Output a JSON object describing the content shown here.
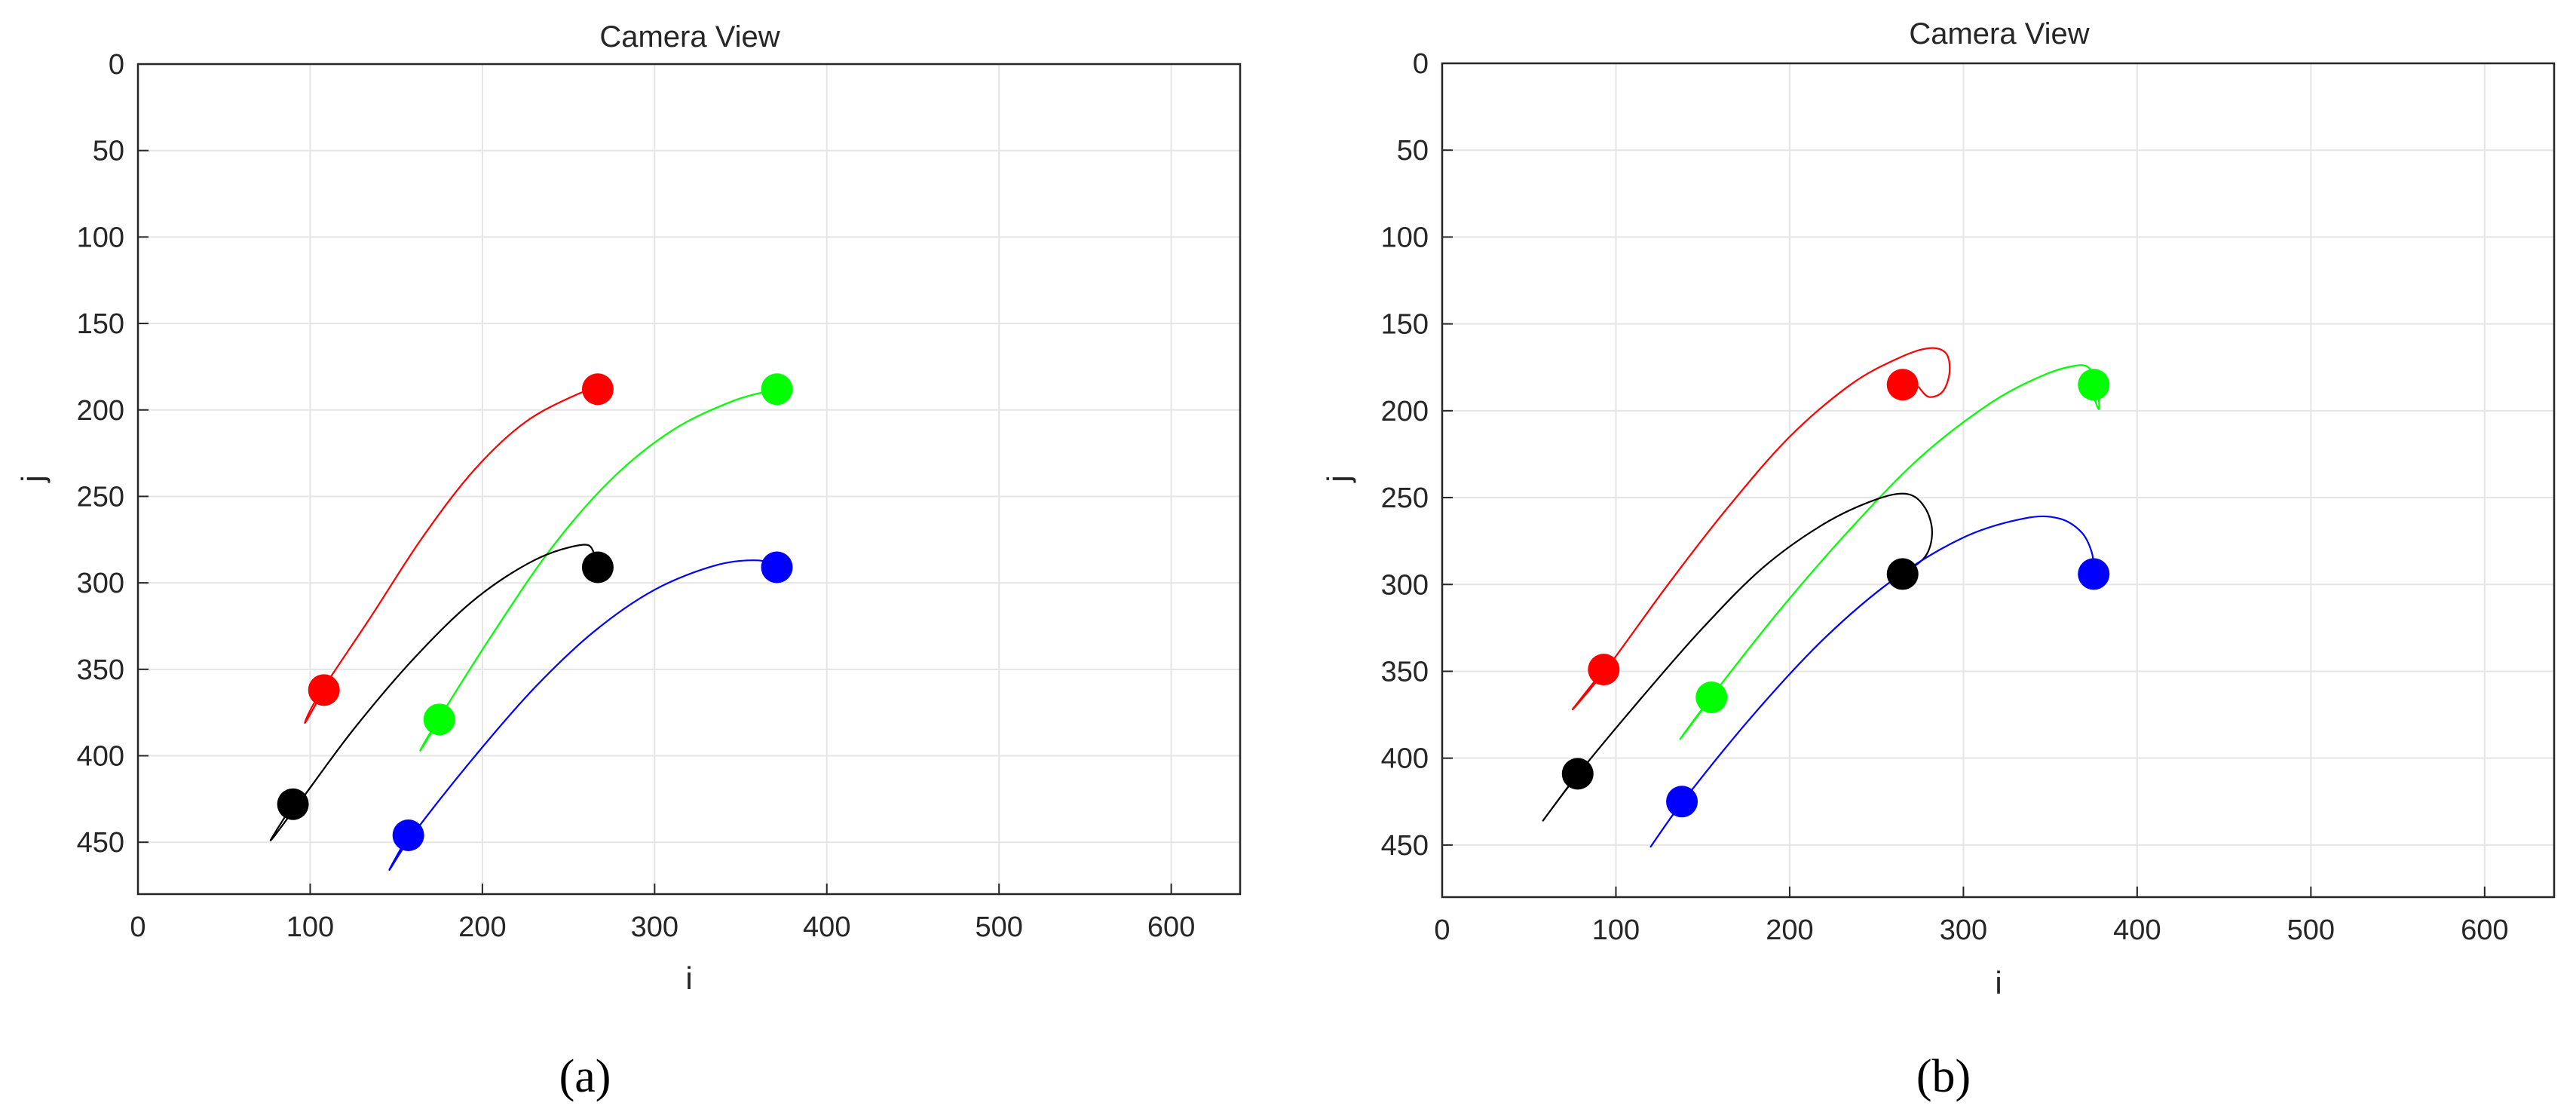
{
  "panels": [
    {
      "caption": "(a)",
      "chart_data": {
        "type": "scatter",
        "title": "Camera View",
        "xlabel": "i",
        "ylabel": "j",
        "xlim": [
          0,
          640
        ],
        "ylim": [
          0,
          480
        ],
        "y_axis_reversed": true,
        "grid": true,
        "xticks": [
          0,
          100,
          200,
          300,
          400,
          500,
          600
        ],
        "yticks": [
          0,
          50,
          100,
          150,
          200,
          250,
          300,
          350,
          400,
          450
        ],
        "markers": [
          {
            "color": "#ff0000",
            "x": 108,
            "y": 362
          },
          {
            "color": "#ff0000",
            "x": 267,
            "y": 188
          },
          {
            "color": "#00ff00",
            "x": 175,
            "y": 379
          },
          {
            "color": "#00ff00",
            "x": 371,
            "y": 188
          },
          {
            "color": "#000000",
            "x": 90,
            "y": 428
          },
          {
            "color": "#000000",
            "x": 267,
            "y": 291
          },
          {
            "color": "#0000ff",
            "x": 157,
            "y": 446
          },
          {
            "color": "#0000ff",
            "x": 371,
            "y": 291
          }
        ],
        "trajectories": [
          {
            "color": "#ff0000",
            "points": [
              [
                108,
                362
              ],
              [
                97,
                381
              ],
              [
                105,
                365
              ],
              [
                135,
                320
              ],
              [
                165,
                274
              ],
              [
                195,
                235
              ],
              [
                225,
                207
              ],
              [
                255,
                191
              ],
              [
                267,
                188
              ]
            ]
          },
          {
            "color": "#00ff00",
            "points": [
              [
                175,
                379
              ],
              [
                164,
                397
              ],
              [
                172,
                383
              ],
              [
                205,
                331
              ],
              [
                240,
                280
              ],
              [
                275,
                240
              ],
              [
                310,
                212
              ],
              [
                345,
                195
              ],
              [
                371,
                188
              ]
            ]
          },
          {
            "color": "#000000",
            "points": [
              [
                90,
                428
              ],
              [
                77,
                449
              ],
              [
                93,
                428
              ],
              [
                125,
                385
              ],
              [
                160,
                344
              ],
              [
                195,
                310
              ],
              [
                230,
                287
              ],
              [
                258,
                278
              ],
              [
                265,
                283
              ],
              [
                267,
                291
              ]
            ]
          },
          {
            "color": "#0000ff",
            "points": [
              [
                157,
                446
              ],
              [
                146,
                466
              ],
              [
                160,
                445
              ],
              [
                195,
                401
              ],
              [
                230,
                361
              ],
              [
                265,
                328
              ],
              [
                300,
                304
              ],
              [
                335,
                290
              ],
              [
                360,
                287
              ],
              [
                371,
                291
              ]
            ]
          }
        ]
      }
    },
    {
      "caption": "(b)",
      "chart_data": {
        "type": "scatter",
        "title": "Camera View",
        "xlabel": "i",
        "ylabel": "j",
        "xlim": [
          0,
          640
        ],
        "ylim": [
          0,
          480
        ],
        "y_axis_reversed": true,
        "grid": true,
        "xticks": [
          0,
          100,
          200,
          300,
          400,
          500,
          600
        ],
        "yticks": [
          0,
          50,
          100,
          150,
          200,
          250,
          300,
          350,
          400,
          450
        ],
        "markers": [
          {
            "color": "#ff0000",
            "x": 93,
            "y": 349
          },
          {
            "color": "#ff0000",
            "x": 265,
            "y": 185
          },
          {
            "color": "#00ff00",
            "x": 155,
            "y": 365
          },
          {
            "color": "#00ff00",
            "x": 375,
            "y": 185
          },
          {
            "color": "#000000",
            "x": 78,
            "y": 409
          },
          {
            "color": "#000000",
            "x": 265,
            "y": 294
          },
          {
            "color": "#0000ff",
            "x": 138,
            "y": 425
          },
          {
            "color": "#0000ff",
            "x": 375,
            "y": 294
          }
        ],
        "trajectories": [
          {
            "color": "#ff0000",
            "points": [
              [
                93,
                349
              ],
              [
                75,
                372
              ],
              [
                95,
                348
              ],
              [
                130,
                300
              ],
              [
                165,
                255
              ],
              [
                200,
                215
              ],
              [
                235,
                185
              ],
              [
                262,
                170
              ],
              [
                280,
                164
              ],
              [
                290,
                167
              ],
              [
                292,
                178
              ],
              [
                288,
                189
              ],
              [
                280,
                192
              ],
              [
                274,
                186
              ]
            ]
          },
          {
            "color": "#00ff00",
            "points": [
              [
                155,
                365
              ],
              [
                137,
                389
              ],
              [
                157,
                362
              ],
              [
                195,
                314
              ],
              [
                235,
                268
              ],
              [
                275,
                227
              ],
              [
                315,
                196
              ],
              [
                345,
                180
              ],
              [
                365,
                174
              ],
              [
                373,
                176
              ],
              [
                377,
                186
              ],
              [
                378,
                199
              ],
              [
                375,
                192
              ]
            ]
          },
          {
            "color": "#000000",
            "points": [
              [
                78,
                409
              ],
              [
                58,
                436
              ],
              [
                80,
                407
              ],
              [
                115,
                365
              ],
              [
                150,
                325
              ],
              [
                185,
                290
              ],
              [
                220,
                265
              ],
              [
                250,
                251
              ],
              [
                268,
                248
              ],
              [
                278,
                256
              ],
              [
                282,
                270
              ],
              [
                278,
                284
              ],
              [
                265,
                294
              ]
            ]
          },
          {
            "color": "#0000ff",
            "points": [
              [
                138,
                425
              ],
              [
                120,
                451
              ],
              [
                140,
                423
              ],
              [
                180,
                374
              ],
              [
                220,
                331
              ],
              [
                260,
                297
              ],
              [
                300,
                273
              ],
              [
                335,
                262
              ],
              [
                355,
                262
              ],
              [
                368,
                270
              ],
              [
                374,
                282
              ],
              [
                375,
                294
              ]
            ]
          }
        ]
      }
    }
  ],
  "style": {
    "axis_color": "#262626",
    "grid_color": "#e5e5e5"
  }
}
